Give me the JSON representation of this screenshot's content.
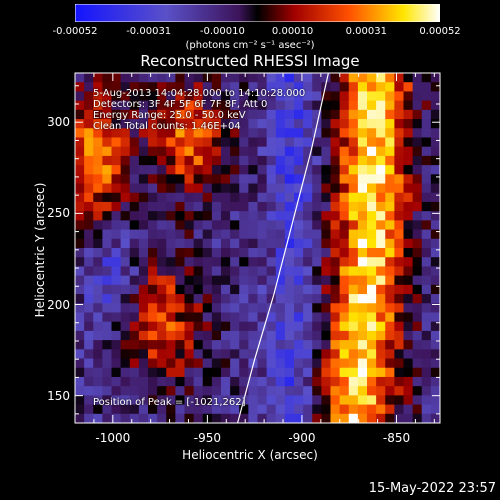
{
  "colorbar": {
    "ticks": [
      "-0.00052",
      "-0.00031",
      "-0.00010",
      "0.00010",
      "0.00031",
      "0.00052"
    ],
    "tick_values": [
      -0.00052,
      -0.00031,
      -0.0001,
      0.0001,
      0.00031,
      0.00052
    ],
    "range": [
      -0.00052,
      0.00052
    ],
    "units": "(photons cm⁻² s⁻¹ asec⁻²)"
  },
  "chart_data": {
    "type": "heatmap",
    "title": "Reconstructed RHESSI Image",
    "xlabel": "Heliocentric X (arcsec)",
    "ylabel": "Heliocentric Y (arcsec)",
    "xlim": [
      -1020,
      -827
    ],
    "ylim": [
      135,
      327
    ],
    "xticks": [
      "-1000",
      "-950",
      "-900",
      "-850"
    ],
    "xtick_values": [
      -1000,
      -950,
      -900,
      -850
    ],
    "yticks": [
      "150",
      "200",
      "250",
      "300"
    ],
    "ytick_values": [
      150,
      200,
      250,
      300
    ],
    "grid": false,
    "colormap": "blue-purple-black-red-yellow-white",
    "peak": [
      -1021,
      262
    ],
    "limb": [
      [
        -934,
        135
      ],
      [
        -925,
        170
      ],
      [
        -915,
        205
      ],
      [
        -905,
        245
      ],
      [
        -895,
        285
      ],
      [
        -886,
        327
      ]
    ]
  },
  "annotations": {
    "line1": "5-Aug-2013 14:04:28.000 to 14:10:28.000",
    "line2": "Detectors: 3F 4F 5F 6F 7F 8F, Att 0",
    "line3": "Energy Range: 25.0 - 50.0 keV",
    "line4": "Clean   Total counts: 1.46E+04",
    "peak_label": "Position of Peak = [-1021,262]"
  },
  "timestamp": "15-May-2022 23:57"
}
